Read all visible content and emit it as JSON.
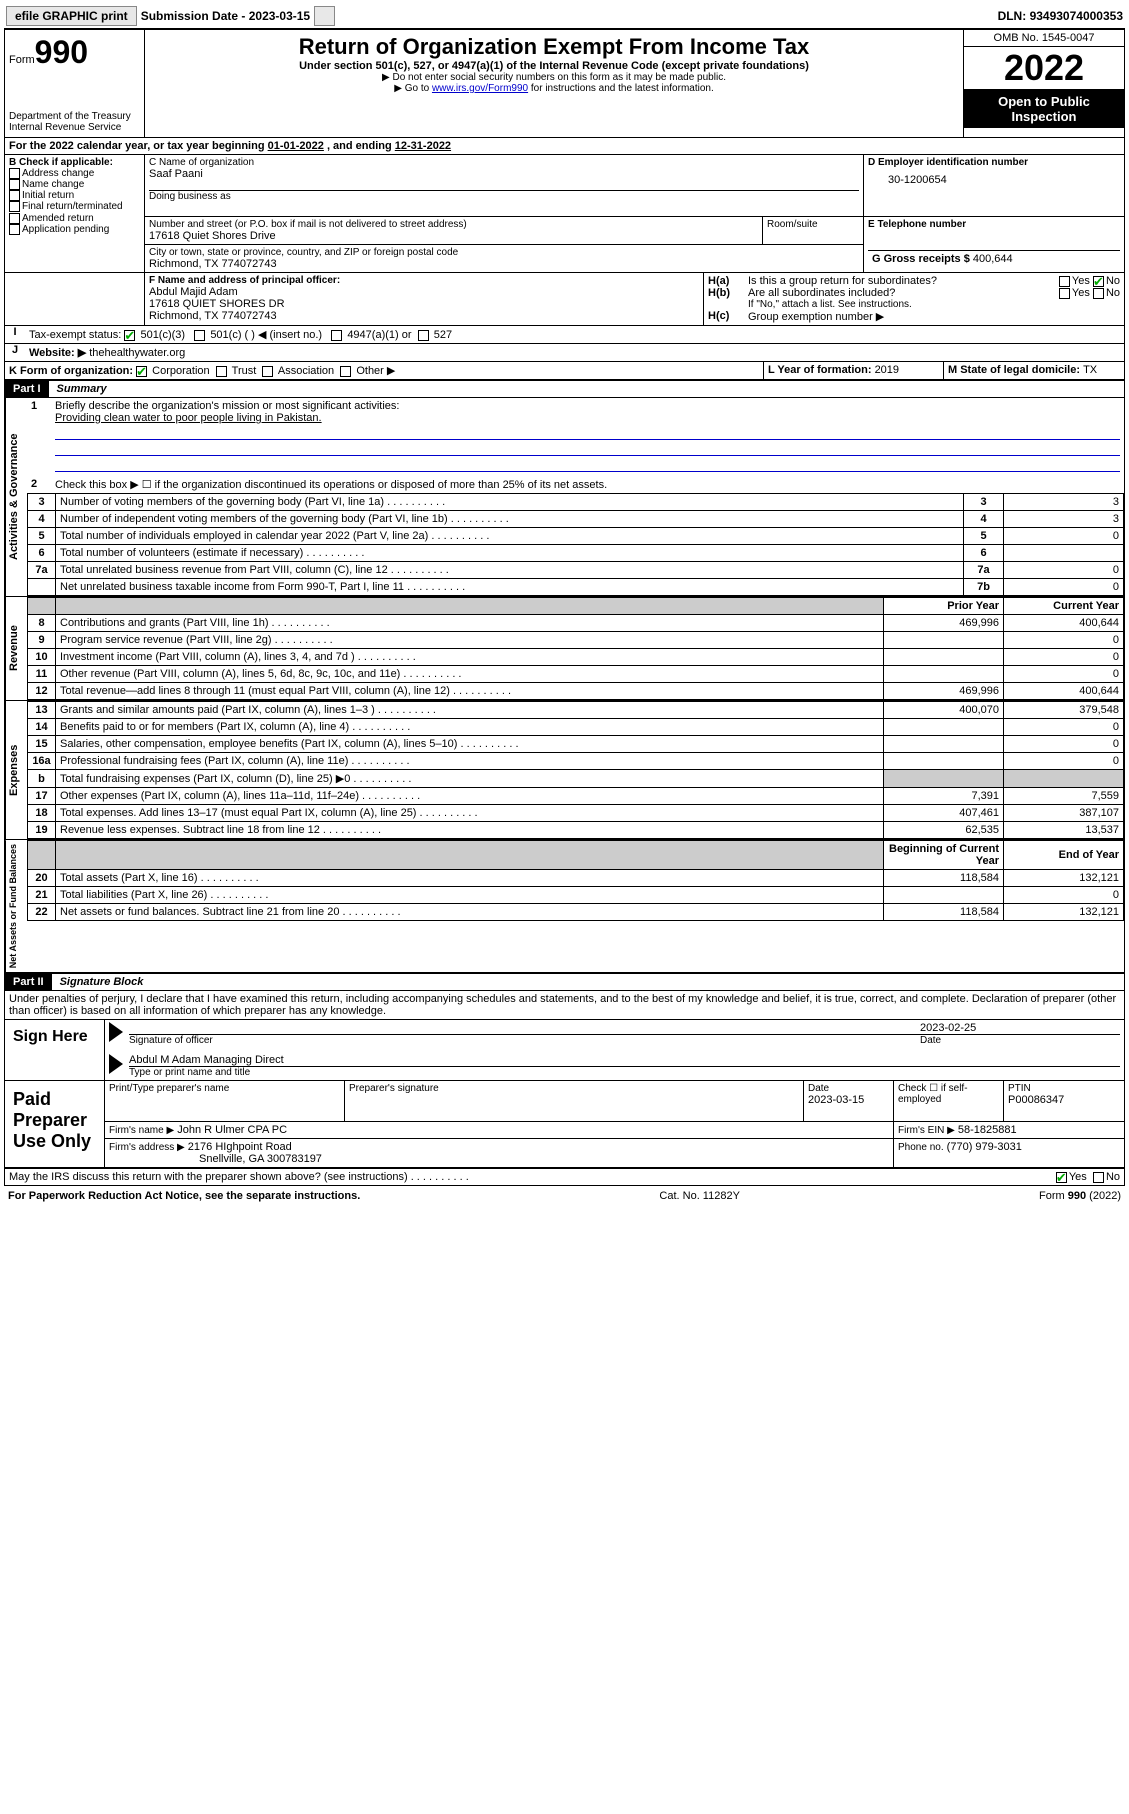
{
  "topbar": {
    "efile": "efile GRAPHIC print",
    "submission_label": "Submission Date - ",
    "submission_date": "2023-03-15",
    "dln_label": "DLN: ",
    "dln": "93493074000353"
  },
  "header": {
    "form_label": "Form",
    "form_number": "990",
    "title": "Return of Organization Exempt From Income Tax",
    "subtitle": "Under section 501(c), 527, or 4947(a)(1) of the Internal Revenue Code (except private foundations)",
    "note1": "▶ Do not enter social security numbers on this form as it may be made public.",
    "note2_prefix": "▶ Go to ",
    "note2_link": "www.irs.gov/Form990",
    "note2_suffix": " for instructions and the latest information.",
    "dept": "Department of the Treasury",
    "irs": "Internal Revenue Service",
    "omb": "OMB No. 1545-0047",
    "year": "2022",
    "open": "Open to Public Inspection"
  },
  "line_a": {
    "text": "For the 2022 calendar year, or tax year beginning ",
    "begin": "01-01-2022",
    "mid": " , and ending ",
    "end": "12-31-2022"
  },
  "section_b": {
    "label": "B Check if applicable:",
    "items": [
      "Address change",
      "Name change",
      "Initial return",
      "Final return/terminated",
      "Amended return",
      "Application pending"
    ]
  },
  "section_c": {
    "label": "C Name of organization",
    "name": "Saaf Paani",
    "dba_label": "Doing business as",
    "addr_label": "Number and street (or P.O. box if mail is not delivered to street address)",
    "room_label": "Room/suite",
    "addr": "17618 Quiet Shores Drive",
    "city_label": "City or town, state or province, country, and ZIP or foreign postal code",
    "city": "Richmond, TX  774072743"
  },
  "section_d": {
    "label": "D Employer identification number",
    "value": "30-1200654"
  },
  "section_e": {
    "label": "E Telephone number",
    "value": ""
  },
  "section_g": {
    "label": "G Gross receipts $ ",
    "value": "400,644"
  },
  "section_f": {
    "label": "F Name and address of principal officer:",
    "name": "Abdul Majid Adam",
    "addr1": "17618 QUIET SHORES DR",
    "addr2": "Richmond, TX  774072743"
  },
  "section_h": {
    "ha": "Is this a group return for subordinates?",
    "hb": "Are all subordinates included?",
    "hb_note": "If \"No,\" attach a list. See instructions.",
    "hc": "Group exemption number ▶",
    "yes": "Yes",
    "no": "No"
  },
  "line_i": {
    "label": "Tax-exempt status:",
    "opts": [
      "501(c)(3)",
      "501(c) (  ) ◀ (insert no.)",
      "4947(a)(1) or",
      "527"
    ]
  },
  "line_j": {
    "label": "Website: ▶",
    "value": "thehealthywater.org"
  },
  "line_k": {
    "label": "K Form of organization:",
    "opts": [
      "Corporation",
      "Trust",
      "Association",
      "Other ▶"
    ]
  },
  "line_l": {
    "label": "L Year of formation: ",
    "value": "2019"
  },
  "line_m": {
    "label": "M State of legal domicile: ",
    "value": "TX"
  },
  "part1": {
    "header": "Part I",
    "title": "Summary",
    "q1": "Briefly describe the organization's mission or most significant activities:",
    "mission": "Providing clean water to poor people living in Pakistan.",
    "q2": "Check this box ▶ ☐  if the organization discontinued its operations or disposed of more than 25% of its net assets.",
    "sections": {
      "gov": "Activities & Governance",
      "rev": "Revenue",
      "exp": "Expenses",
      "net": "Net Assets or Fund Balances"
    },
    "col_prior": "Prior Year",
    "col_current": "Current Year",
    "col_begin": "Beginning of Current Year",
    "col_end": "End of Year",
    "lines_gov": [
      {
        "n": "3",
        "t": "Number of voting members of the governing body (Part VI, line 1a)",
        "box": "3",
        "v": "3"
      },
      {
        "n": "4",
        "t": "Number of independent voting members of the governing body (Part VI, line 1b)",
        "box": "4",
        "v": "3"
      },
      {
        "n": "5",
        "t": "Total number of individuals employed in calendar year 2022 (Part V, line 2a)",
        "box": "5",
        "v": "0"
      },
      {
        "n": "6",
        "t": "Total number of volunteers (estimate if necessary)",
        "box": "6",
        "v": ""
      },
      {
        "n": "7a",
        "t": "Total unrelated business revenue from Part VIII, column (C), line 12",
        "box": "7a",
        "v": "0"
      },
      {
        "n": "",
        "t": "Net unrelated business taxable income from Form 990-T, Part I, line 11",
        "box": "7b",
        "v": "0"
      }
    ],
    "lines_rev": [
      {
        "n": "8",
        "t": "Contributions and grants (Part VIII, line 1h)",
        "p": "469,996",
        "c": "400,644"
      },
      {
        "n": "9",
        "t": "Program service revenue (Part VIII, line 2g)",
        "p": "",
        "c": "0"
      },
      {
        "n": "10",
        "t": "Investment income (Part VIII, column (A), lines 3, 4, and 7d )",
        "p": "",
        "c": "0"
      },
      {
        "n": "11",
        "t": "Other revenue (Part VIII, column (A), lines 5, 6d, 8c, 9c, 10c, and 11e)",
        "p": "",
        "c": "0"
      },
      {
        "n": "12",
        "t": "Total revenue—add lines 8 through 11 (must equal Part VIII, column (A), line 12)",
        "p": "469,996",
        "c": "400,644"
      }
    ],
    "lines_exp": [
      {
        "n": "13",
        "t": "Grants and similar amounts paid (Part IX, column (A), lines 1–3 )",
        "p": "400,070",
        "c": "379,548"
      },
      {
        "n": "14",
        "t": "Benefits paid to or for members (Part IX, column (A), line 4)",
        "p": "",
        "c": "0"
      },
      {
        "n": "15",
        "t": "Salaries, other compensation, employee benefits (Part IX, column (A), lines 5–10)",
        "p": "",
        "c": "0"
      },
      {
        "n": "16a",
        "t": "Professional fundraising fees (Part IX, column (A), line 11e)",
        "p": "",
        "c": "0"
      },
      {
        "n": "b",
        "t": "Total fundraising expenses (Part IX, column (D), line 25) ▶0",
        "p": "grey",
        "c": "grey"
      },
      {
        "n": "17",
        "t": "Other expenses (Part IX, column (A), lines 11a–11d, 11f–24e)",
        "p": "7,391",
        "c": "7,559"
      },
      {
        "n": "18",
        "t": "Total expenses. Add lines 13–17 (must equal Part IX, column (A), line 25)",
        "p": "407,461",
        "c": "387,107"
      },
      {
        "n": "19",
        "t": "Revenue less expenses. Subtract line 18 from line 12",
        "p": "62,535",
        "c": "13,537"
      }
    ],
    "lines_net": [
      {
        "n": "20",
        "t": "Total assets (Part X, line 16)",
        "p": "118,584",
        "c": "132,121"
      },
      {
        "n": "21",
        "t": "Total liabilities (Part X, line 26)",
        "p": "",
        "c": "0"
      },
      {
        "n": "22",
        "t": "Net assets or fund balances. Subtract line 21 from line 20",
        "p": "118,584",
        "c": "132,121"
      }
    ]
  },
  "part2": {
    "header": "Part II",
    "title": "Signature Block",
    "decl": "Under penalties of perjury, I declare that I have examined this return, including accompanying schedules and statements, and to the best of my knowledge and belief, it is true, correct, and complete. Declaration of preparer (other than officer) is based on all information of which preparer has any knowledge.",
    "sign_here": "Sign Here",
    "sig_officer": "Signature of officer",
    "sig_date": "Date",
    "sig_date_val": "2023-02-25",
    "officer_name": "Abdul M Adam  Managing Direct",
    "type_name": "Type or print name and title",
    "paid": "Paid Preparer Use Only",
    "prep_name_label": "Print/Type preparer's name",
    "prep_sig_label": "Preparer's signature",
    "date_label": "Date",
    "prep_date": "2023-03-15",
    "check_label": "Check ☐ if self-employed",
    "ptin_label": "PTIN",
    "ptin": "P00086347",
    "firm_name_label": "Firm's name    ▶",
    "firm_name": "John R Ulmer CPA PC",
    "firm_ein_label": "Firm's EIN ▶",
    "firm_ein": "58-1825881",
    "firm_addr_label": "Firm's address ▶",
    "firm_addr1": "2176 HIghpoint Road",
    "firm_addr2": "Snellville, GA  300783197",
    "phone_label": "Phone no.",
    "phone": "(770) 979-3031",
    "may_irs": "May the IRS discuss this return with the preparer shown above? (see instructions)"
  },
  "footer": {
    "left": "For Paperwork Reduction Act Notice, see the separate instructions.",
    "mid": "Cat. No. 11282Y",
    "right": "Form 990 (2022)"
  }
}
